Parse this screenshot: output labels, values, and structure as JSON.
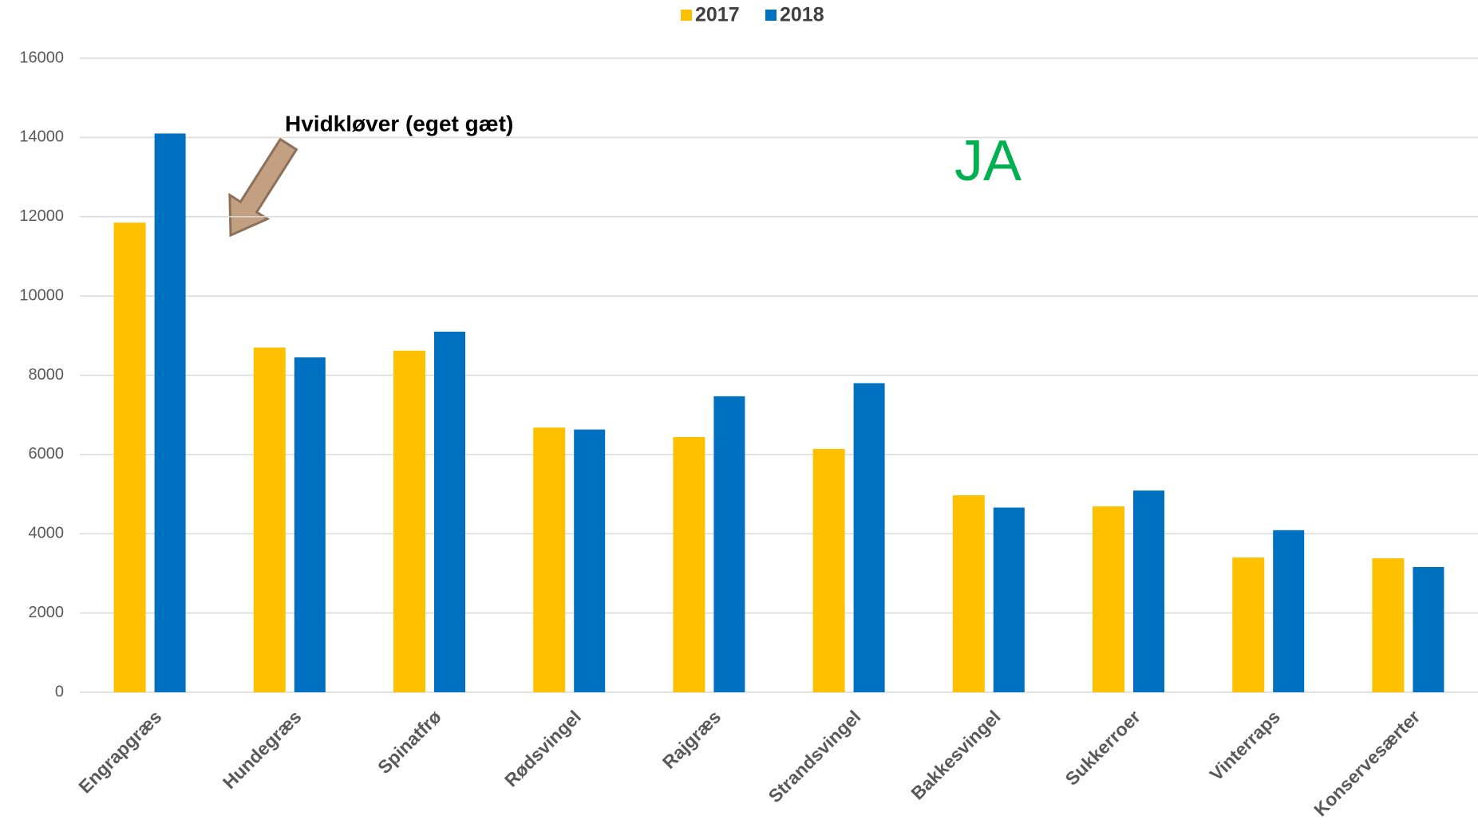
{
  "chart_data": {
    "type": "bar",
    "categories": [
      "Engrapgræs",
      "Hundegræs",
      "Spinatfrø",
      "Rødsvingel",
      "Rajgræs",
      "Strandsvingel",
      "Bakkesvingel",
      "Sukkerroer",
      "Vinterraps",
      "Konservesærter"
    ],
    "series": [
      {
        "name": "2017",
        "color": "#ffc000",
        "values": [
          11850,
          8700,
          8620,
          6680,
          6440,
          6140,
          4970,
          4690,
          3400,
          3380
        ]
      },
      {
        "name": "2018",
        "color": "#0070c0",
        "values": [
          14100,
          8450,
          9100,
          6630,
          7470,
          7800,
          4660,
          5090,
          4090,
          3160
        ]
      }
    ],
    "ylim": [
      0,
      16000
    ],
    "yticks": [
      0,
      2000,
      4000,
      6000,
      8000,
      10000,
      12000,
      14000,
      16000
    ],
    "grid": true,
    "legend": "top",
    "annotations": [
      {
        "text": "Hvidkløver (eget gæt)"
      },
      {
        "text": "JA",
        "color": "#00b050"
      }
    ]
  }
}
